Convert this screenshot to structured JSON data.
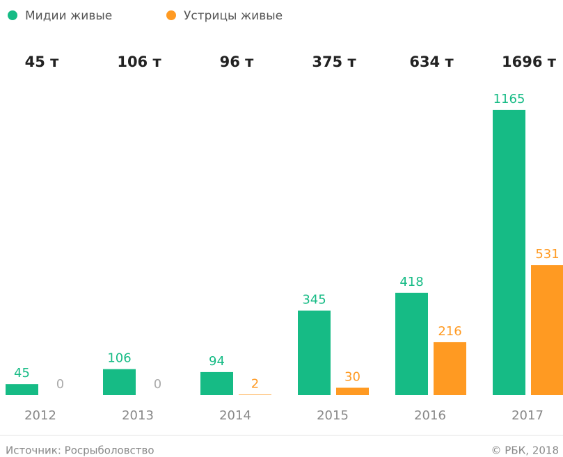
{
  "chart_data": {
    "type": "bar",
    "categories": [
      "2012",
      "2013",
      "2014",
      "2015",
      "2016",
      "2017"
    ],
    "series": [
      {
        "name": "Мидии живые",
        "color": "#16bb85",
        "values": [
          45,
          106,
          94,
          345,
          418,
          1165
        ]
      },
      {
        "name": "Устрицы живые",
        "color": "#ff9a22",
        "values": [
          0,
          0,
          2,
          30,
          216,
          531
        ]
      }
    ],
    "totals": {
      "values": [
        45,
        106,
        96,
        375,
        634,
        1696
      ],
      "value_labels": [
        "45 т",
        "106 т",
        "96 т",
        "375 т",
        "634 т",
        "1696 т"
      ]
    },
    "source": "Источник: Росрыболовство",
    "credit": "© РБК, 2018"
  }
}
